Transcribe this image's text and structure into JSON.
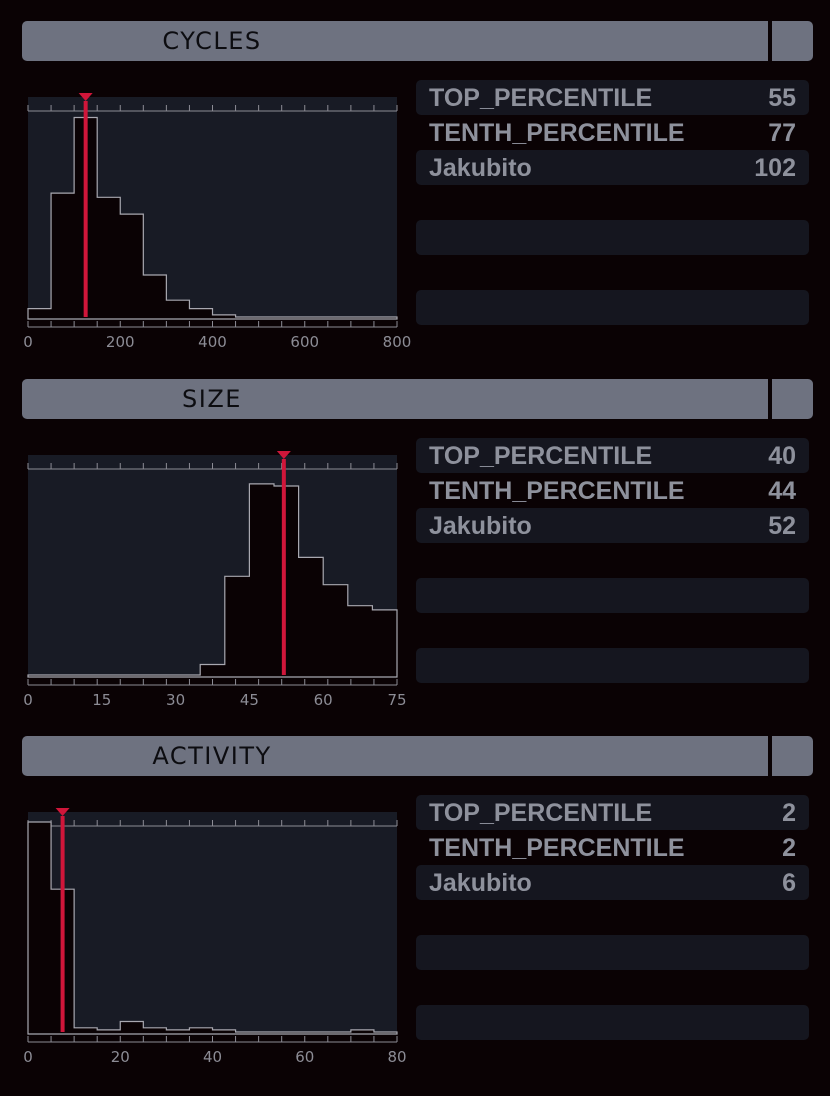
{
  "sections": [
    {
      "title": "CYCLES",
      "rows": [
        {
          "label": "TOP_PERCENTILE",
          "value": "55"
        },
        {
          "label": "TENTH_PERCENTILE",
          "value": "77"
        },
        {
          "label": "Jakubito",
          "value": "102"
        }
      ],
      "chart_data": {
        "type": "histogram",
        "xlim": [
          0,
          800
        ],
        "xticks": [
          "0",
          "200",
          "400",
          "600",
          "800"
        ],
        "bin_edges": [
          0,
          50,
          100,
          150,
          200,
          250,
          300,
          350,
          400,
          450,
          500,
          550,
          600,
          650,
          700,
          750,
          800
        ],
        "values": [
          4,
          59,
          95,
          57,
          49,
          20,
          8,
          4,
          1,
          0,
          0,
          0,
          0,
          0,
          0,
          0
        ],
        "marker": 125
      }
    },
    {
      "title": "SIZE",
      "rows": [
        {
          "label": "TOP_PERCENTILE",
          "value": "40"
        },
        {
          "label": "TENTH_PERCENTILE",
          "value": "44"
        },
        {
          "label": "Jakubito",
          "value": "52"
        }
      ],
      "chart_data": {
        "type": "histogram",
        "xlim": [
          0,
          75
        ],
        "xticks": [
          "0",
          "15",
          "30",
          "45",
          "60",
          "75"
        ],
        "bin_edges": [
          0,
          5,
          10,
          15,
          20,
          25,
          30,
          35,
          40,
          45,
          50,
          55,
          60,
          65,
          70,
          75
        ],
        "values": [
          0,
          0,
          0,
          0,
          0,
          0,
          0,
          5,
          47,
          91,
          90,
          56,
          43,
          33,
          31
        ],
        "marker": 52
      }
    },
    {
      "title": "ACTIVITY",
      "rows": [
        {
          "label": "TOP_PERCENTILE",
          "value": "2"
        },
        {
          "label": "TENTH_PERCENTILE",
          "value": "2"
        },
        {
          "label": "Jakubito",
          "value": "6"
        }
      ],
      "chart_data": {
        "type": "histogram",
        "xlim": [
          0,
          80
        ],
        "xticks": [
          "0",
          "20",
          "40",
          "60",
          "80"
        ],
        "bin_edges": [
          0,
          5,
          10,
          15,
          20,
          25,
          30,
          35,
          40,
          45,
          50,
          55,
          60,
          65,
          70,
          75,
          80
        ],
        "values": [
          100,
          68,
          2,
          1,
          5,
          2,
          1,
          2,
          1,
          0,
          0,
          0,
          0,
          0,
          1,
          0
        ],
        "marker": 7.5
      }
    }
  ],
  "colors": {
    "background": "#0a0204",
    "header": "#6e7280",
    "plot_bg": "#181b25",
    "hist_fill": "#0a0204",
    "hist_line": "#a8a8b0",
    "marker": "#d0163a",
    "row_bg": "#15161f",
    "text": "#8e919c"
  }
}
